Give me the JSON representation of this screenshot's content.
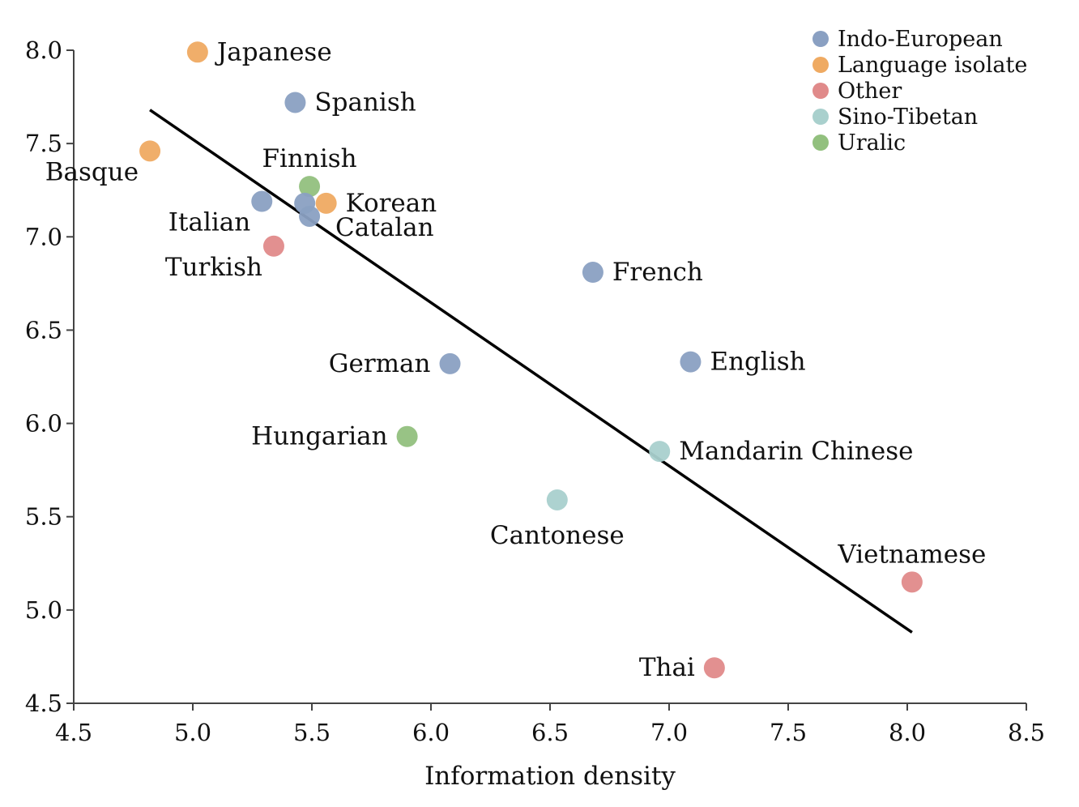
{
  "chart_data": {
    "type": "scatter",
    "xlabel": "Information density",
    "ylabel": "",
    "xlim": [
      4.5,
      8.5
    ],
    "ylim": [
      4.5,
      8.0
    ],
    "x_ticks": [
      "4.5",
      "5.0",
      "5.5",
      "6.0",
      "6.5",
      "7.0",
      "7.5",
      "8.0",
      "8.5"
    ],
    "y_ticks": [
      "4.5",
      "5.0",
      "5.5",
      "6.0",
      "6.5",
      "7.0",
      "7.5",
      "8.0"
    ],
    "grid": false,
    "legend_position": "top-right",
    "categories": [
      {
        "name": "Indo-European",
        "color": "#8aa0c2"
      },
      {
        "name": "Language isolate",
        "color": "#efaa62"
      },
      {
        "name": "Other",
        "color": "#e08a8a"
      },
      {
        "name": "Sino-Tibetan",
        "color": "#a9d0cd"
      },
      {
        "name": "Uralic",
        "color": "#92c07e"
      }
    ],
    "points": [
      {
        "label": "Japanese",
        "x": 5.02,
        "y": 7.99,
        "category": "Language isolate",
        "label_pos": "right"
      },
      {
        "label": "Spanish",
        "x": 5.43,
        "y": 7.72,
        "category": "Indo-European",
        "label_pos": "right"
      },
      {
        "label": "Basque",
        "x": 4.82,
        "y": 7.46,
        "category": "Language isolate",
        "label_pos": "below-left"
      },
      {
        "label": "Finnish",
        "x": 5.49,
        "y": 7.27,
        "category": "Uralic",
        "label_pos": "above"
      },
      {
        "label": "Italian",
        "x": 5.29,
        "y": 7.19,
        "category": "Indo-European",
        "label_pos": "below-left"
      },
      {
        "label": "",
        "x": 5.47,
        "y": 7.18,
        "category": "Indo-European",
        "label_pos": "none"
      },
      {
        "label": "Korean",
        "x": 5.56,
        "y": 7.18,
        "category": "Language isolate",
        "label_pos": "right"
      },
      {
        "label": "Catalan",
        "x": 5.49,
        "y": 7.11,
        "category": "Indo-European",
        "label_pos": "right-below"
      },
      {
        "label": "Turkish",
        "x": 5.34,
        "y": 6.95,
        "category": "Other",
        "label_pos": "below-left"
      },
      {
        "label": "French",
        "x": 6.68,
        "y": 6.81,
        "category": "Indo-European",
        "label_pos": "right"
      },
      {
        "label": "German",
        "x": 6.08,
        "y": 6.32,
        "category": "Indo-European",
        "label_pos": "left"
      },
      {
        "label": "English",
        "x": 7.09,
        "y": 6.33,
        "category": "Indo-European",
        "label_pos": "right"
      },
      {
        "label": "Hungarian",
        "x": 5.9,
        "y": 5.93,
        "category": "Uralic",
        "label_pos": "left"
      },
      {
        "label": "Mandarin Chinese",
        "x": 6.96,
        "y": 5.85,
        "category": "Sino-Tibetan",
        "label_pos": "right"
      },
      {
        "label": "Cantonese",
        "x": 6.53,
        "y": 5.59,
        "category": "Sino-Tibetan",
        "label_pos": "below"
      },
      {
        "label": "Vietnamese",
        "x": 8.02,
        "y": 5.15,
        "category": "Other",
        "label_pos": "above"
      },
      {
        "label": "Thai",
        "x": 7.19,
        "y": 4.69,
        "category": "Other",
        "label_pos": "left"
      }
    ],
    "trend_line": {
      "x": [
        4.82,
        8.02
      ],
      "y": [
        7.68,
        4.88
      ]
    }
  }
}
